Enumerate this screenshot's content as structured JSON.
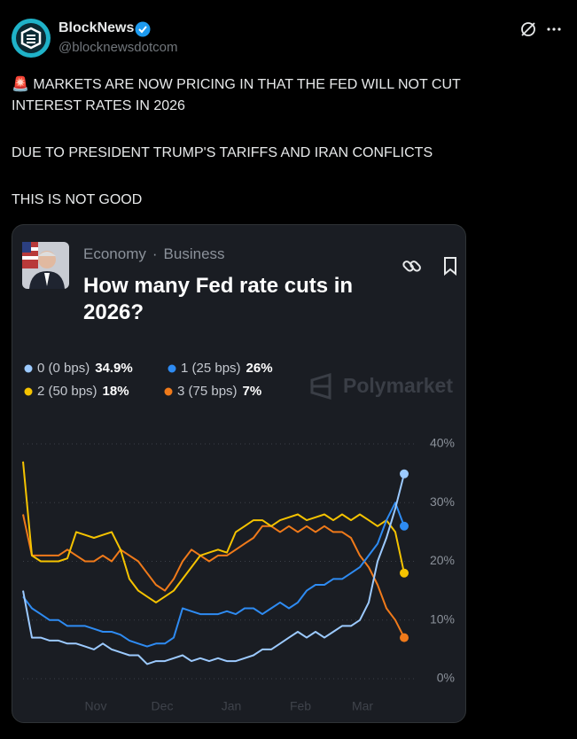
{
  "tweet": {
    "name": "BlockNews",
    "handle": "@blocknewsdotcom",
    "lines": [
      "🚨 MARKETS ARE NOW PRICING IN THAT THE FED WILL NOT CUT",
      "INTEREST RATES IN 2026",
      "DUE TO PRESIDENT TRUMP'S TARIFFS AND IRAN CONFLICTS",
      "THIS IS NOT GOOD"
    ]
  },
  "card": {
    "tags": [
      "Economy",
      "Business"
    ],
    "brand": "Polymarket"
  },
  "chart_data": {
    "type": "line",
    "title": "How many Fed rate cuts in 2026?",
    "xlim": [
      0,
      43
    ],
    "xticks": [
      {
        "value": 8.2,
        "label": "Nov"
      },
      {
        "value": 15.7,
        "label": "Dec"
      },
      {
        "value": 23.5,
        "label": "Jan"
      },
      {
        "value": 31.3,
        "label": "Feb"
      },
      {
        "value": 38.3,
        "label": "Mar"
      }
    ],
    "ylim": [
      0,
      40
    ],
    "yticks": [
      {
        "value": 0,
        "label": "0%"
      },
      {
        "value": 10,
        "label": "10%"
      },
      {
        "value": 20,
        "label": "20%"
      },
      {
        "value": 30,
        "label": "30%"
      },
      {
        "value": 40,
        "label": "40%"
      }
    ],
    "grid": true,
    "series": [
      {
        "name": "0 (0 bps)",
        "color": "#9ccaff",
        "value": 34.9,
        "value_label": "34.9%",
        "values": [
          15,
          7,
          7,
          6.5,
          6.5,
          6,
          6,
          5.5,
          5,
          6,
          5,
          4.5,
          4,
          4,
          2.5,
          3,
          3,
          3.5,
          4,
          3,
          3.5,
          3,
          3.5,
          3,
          3,
          3.5,
          4,
          5,
          5,
          6,
          7,
          8,
          7,
          8,
          7,
          8,
          9,
          9,
          10,
          13,
          20,
          24,
          29,
          34.9
        ]
      },
      {
        "name": "1 (25 bps)",
        "color": "#2e8bf2",
        "value": 26,
        "value_label": "26%",
        "values": [
          14,
          12,
          11,
          10,
          10,
          9,
          9,
          9,
          8.5,
          8,
          8,
          7.5,
          6.5,
          6,
          5.5,
          6,
          6,
          7,
          12,
          11.5,
          11,
          11,
          11,
          11.5,
          11,
          12,
          12,
          11,
          12,
          13,
          12,
          13,
          15,
          16,
          16,
          17,
          17,
          18,
          19,
          21,
          23,
          27,
          30,
          26
        ]
      },
      {
        "name": "2 (50 bps)",
        "color": "#f5c300",
        "value": 18,
        "value_label": "18%",
        "values": [
          37,
          21,
          20,
          20,
          20,
          20.5,
          25,
          24.5,
          24,
          24.5,
          25,
          22,
          17,
          15,
          14,
          13,
          14,
          15,
          17,
          19,
          21,
          21.5,
          22,
          21.5,
          25,
          26,
          27,
          27,
          26,
          27,
          27.5,
          28,
          27,
          27.5,
          28,
          27,
          28,
          27,
          28,
          27,
          26,
          27,
          25,
          18
        ]
      },
      {
        "name": "3 (75 bps)",
        "color": "#f07a1a",
        "value": 7,
        "value_label": "7%",
        "values": [
          28,
          21,
          21,
          21,
          21,
          22,
          21,
          20,
          20,
          21,
          20,
          22,
          21,
          20,
          18,
          16,
          15,
          17,
          20,
          22,
          21,
          20,
          21,
          21,
          22,
          23,
          24,
          26,
          26,
          25,
          26,
          25,
          26,
          25,
          26,
          25,
          25,
          24,
          21,
          19,
          16,
          12,
          10,
          7
        ]
      }
    ]
  }
}
